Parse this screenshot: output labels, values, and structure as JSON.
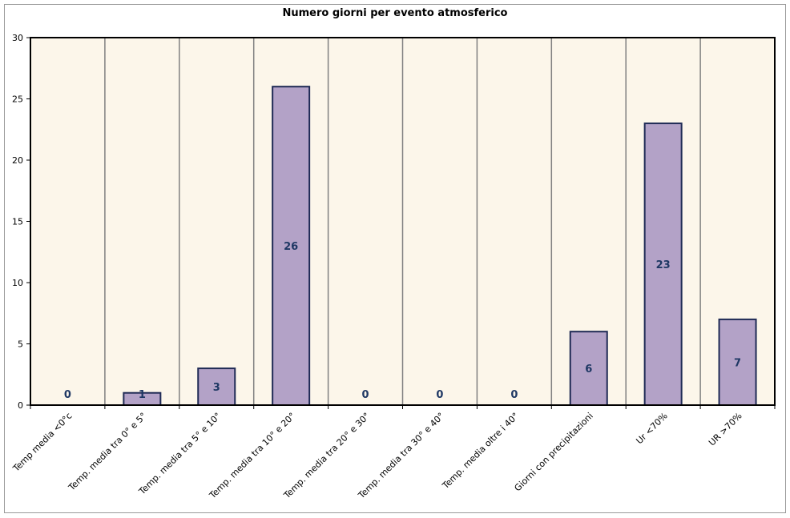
{
  "chart_data": {
    "type": "bar",
    "title": "Numero giorni per evento atmosferico",
    "xlabel": "",
    "ylabel": "",
    "ylim": [
      0,
      30
    ],
    "yticks": [
      0,
      5,
      10,
      15,
      20,
      25,
      30
    ],
    "categories": [
      "Temp media <0°c",
      "Temp. media tra 0° e 5°",
      "Temp. media tra 5° e 10°",
      "Temp. media tra 10° e 20°",
      "Temp. media tra 20° e 30°",
      "Temp. media tra 30° e 40°",
      "Temp. media oltre i 40°",
      "Giorni con precipitazioni",
      "Ur <70%",
      "UR >70%"
    ],
    "values": [
      0,
      1,
      3,
      26,
      0,
      0,
      0,
      6,
      23,
      7
    ],
    "grid": "vertical category separators",
    "legend": "none",
    "colors": {
      "bar_fill": "#b3a2c7",
      "bar_stroke": "#1f2a55",
      "plot_background": "#fcf6ea",
      "data_label": "#1f3864",
      "separator": "#808080"
    }
  }
}
